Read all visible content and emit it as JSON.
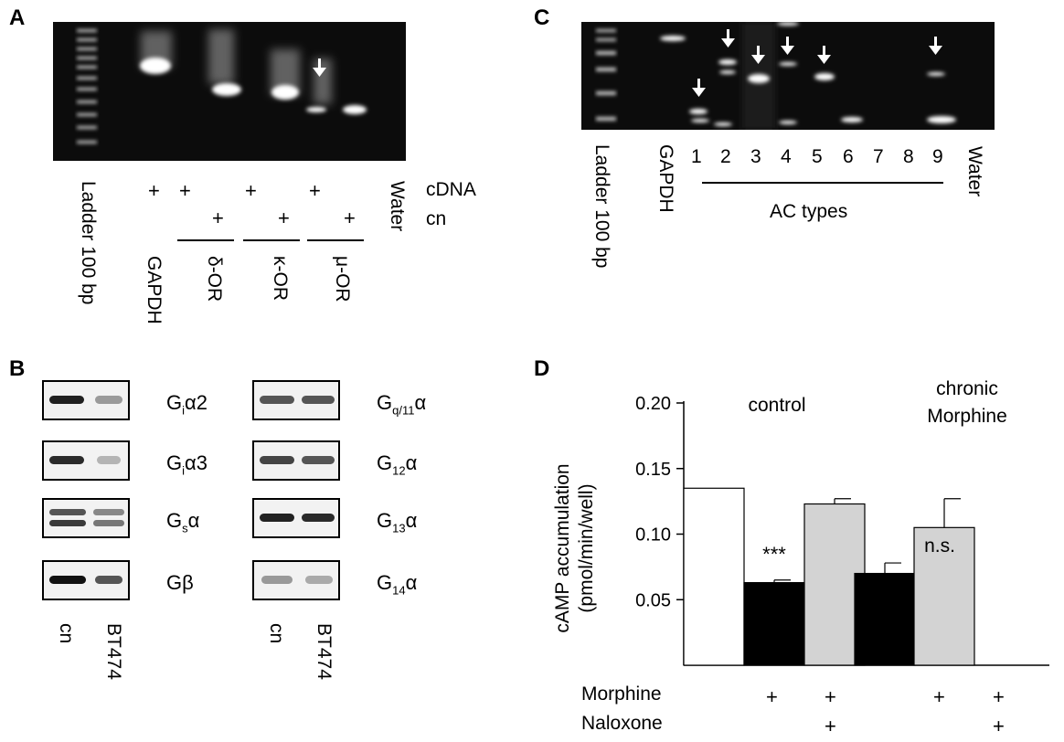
{
  "panels": {
    "A": "A",
    "B": "B",
    "C": "C",
    "D": "D"
  },
  "panelA": {
    "lanes": [
      "Ladder 100 bp",
      "GAPDH",
      "δ-OR",
      "κ-OR",
      "μ-OR",
      "Water"
    ],
    "row_labels": [
      "cDNA",
      "cn"
    ]
  },
  "panelC": {
    "ladder": "Ladder 100 bp",
    "gapdh": "GAPDH",
    "numbers": [
      "1",
      "2",
      "3",
      "4",
      "5",
      "6",
      "7",
      "8",
      "9"
    ],
    "group_label": "AC types",
    "water": "Water"
  },
  "panelB": {
    "left_labels": [
      {
        "main": "G",
        "sub": "i",
        "rest": "α2"
      },
      {
        "main": "G",
        "sub": "i",
        "rest": "α3"
      },
      {
        "main": "G",
        "sub": "s",
        "rest": "α"
      },
      {
        "main": "Gβ",
        "sub": "",
        "rest": ""
      }
    ],
    "right_labels": [
      {
        "main": "G",
        "sub": "q/11",
        "rest": "α"
      },
      {
        "main": "G",
        "sub": "12",
        "rest": "α"
      },
      {
        "main": "G",
        "sub": "13",
        "rest": "α"
      },
      {
        "main": "G",
        "sub": "14",
        "rest": "α"
      }
    ],
    "lane_labels": [
      "cn",
      "BT474"
    ]
  },
  "chart_data": {
    "type": "bar",
    "ylabel_line1": "cAMP accumulation",
    "ylabel_line2": "(pmol/min/well)",
    "ylim": [
      0.0,
      0.2
    ],
    "yticks": [
      "0.05",
      "0.10",
      "0.15",
      "0.20"
    ],
    "group_labels": [
      "control",
      "chronic",
      "Morphine"
    ],
    "bars": [
      {
        "value": 0.135,
        "error": 0,
        "color": "#ffffff"
      },
      {
        "value": 0.063,
        "error": 0.002,
        "color": "#000000"
      },
      {
        "value": 0.123,
        "error": 0.004,
        "color": "#d3d3d3"
      },
      {
        "value": 0.07,
        "error": 0.008,
        "color": "#000000"
      },
      {
        "value": 0.105,
        "error": 0.022,
        "color": "#d3d3d3"
      }
    ],
    "annotations": [
      "***",
      "n.s."
    ],
    "row_labels": [
      "Morphine",
      "Naloxone"
    ]
  }
}
